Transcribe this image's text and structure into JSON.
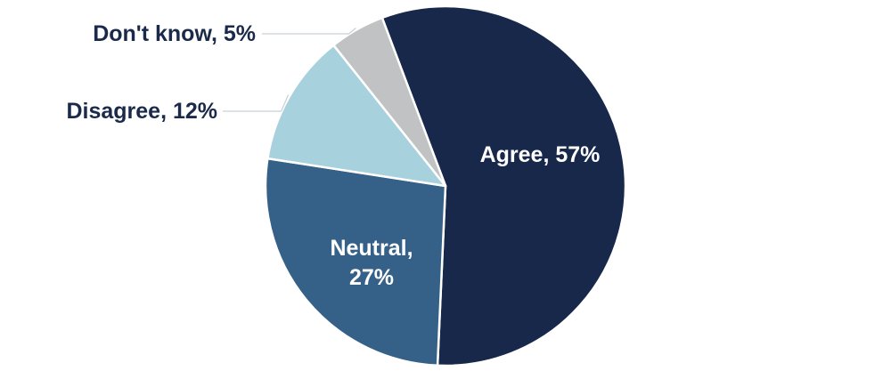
{
  "chart_data": {
    "type": "pie",
    "slices": [
      {
        "label": "Agree",
        "display": "Agree, 57%",
        "value": 57,
        "color": "#17284b"
      },
      {
        "label": "Neutral",
        "display_lines": [
          "Neutral,",
          "27%"
        ],
        "value": 27,
        "color": "#356088"
      },
      {
        "label": "Disagree",
        "display": "Disagree, 12%",
        "value": 12,
        "color": "#a8d1de"
      },
      {
        "label": "Don't know",
        "display": "Don't know, 5%",
        "value": 5,
        "color": "#c1c2c4"
      }
    ]
  }
}
